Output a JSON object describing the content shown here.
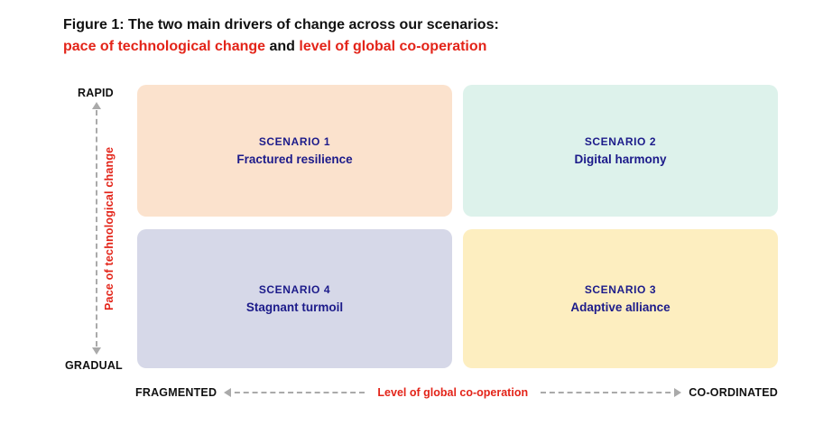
{
  "title": {
    "line1": "Figure 1: The two main drivers of change across our scenarios:",
    "line2_red1": "pace of technological change",
    "line2_and": " and ",
    "line2_red2": "level of global co-operation"
  },
  "y_axis": {
    "top_label": "RAPID",
    "bottom_label": "GRADUAL",
    "axis_label": "Pace of technological change"
  },
  "x_axis": {
    "left_label": "FRAGMENTED",
    "right_label": "CO-ORDINATED",
    "axis_label": "Level of global co-operation"
  },
  "quadrants": [
    {
      "position": "top-left",
      "title": "SCENARIO 1",
      "name": "Fractured resilience",
      "bg": "#fbe2cd"
    },
    {
      "position": "top-right",
      "title": "SCENARIO 2",
      "name": "Digital harmony",
      "bg": "#ddf2eb"
    },
    {
      "position": "bottom-left",
      "title": "SCENARIO 4",
      "name": "Stagnant turmoil",
      "bg": "#d6d8e8"
    },
    {
      "position": "bottom-right",
      "title": "SCENARIO 3",
      "name": "Adaptive alliance",
      "bg": "#fdeec0"
    }
  ],
  "colors": {
    "accent_red": "#e32419",
    "scenario_navy": "#1c1b8a",
    "arrow_gray": "#aaaaaa",
    "background": "#ffffff"
  }
}
